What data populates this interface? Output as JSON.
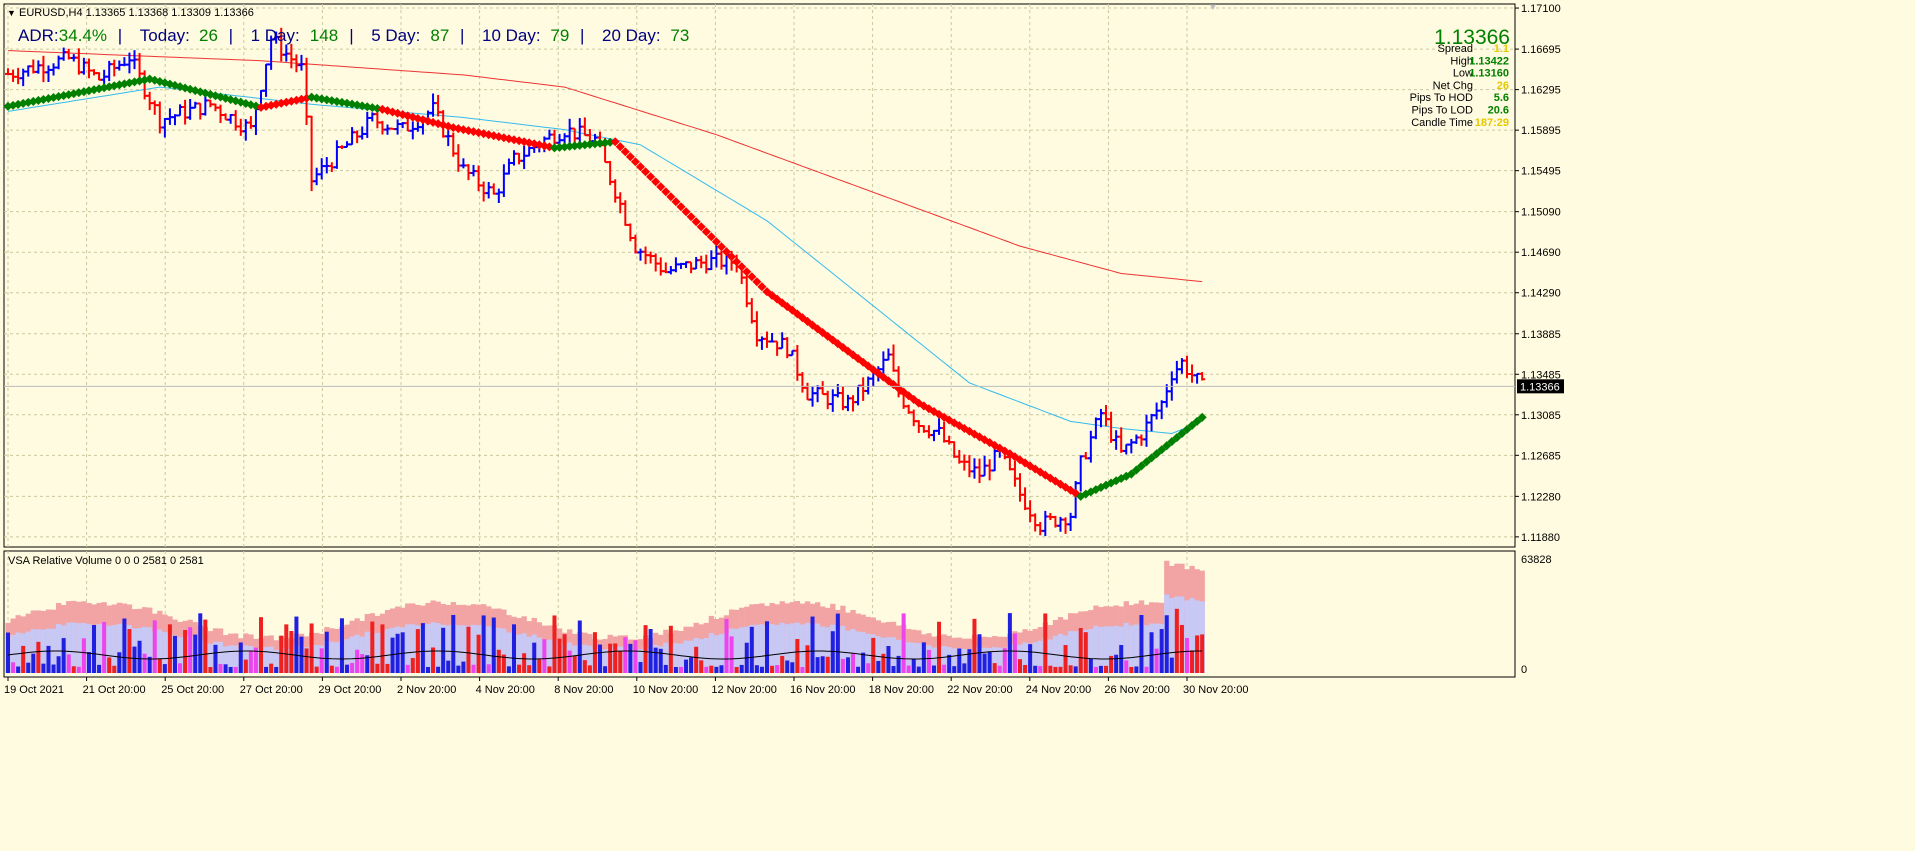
{
  "header": {
    "symbol_line": "EURUSD,H4  1.13365 1.13368 1.13309 1.13366"
  },
  "adr_bar": [
    {
      "label": "ADR:",
      "value": "34.4%",
      "sep": "|"
    },
    {
      "label": "Today:",
      "value": "26",
      "sep": "|"
    },
    {
      "label": "1 Day:",
      "value": "148",
      "sep": "|"
    },
    {
      "label": "5 Day:",
      "value": "87",
      "sep": "|"
    },
    {
      "label": "10 Day:",
      "value": "79",
      "sep": "|"
    },
    {
      "label": "20 Day:",
      "value": "73",
      "sep": ""
    }
  ],
  "info_panel": {
    "price": "1.13366",
    "rows": [
      {
        "label": "Spread",
        "value": "1.1",
        "color": "#e6c800"
      },
      {
        "label": "High",
        "value": "1.13422",
        "color": "#008000"
      },
      {
        "label": "Low",
        "value": "1.13160",
        "color": "#008000"
      },
      {
        "label": "Net Chg",
        "value": "26",
        "color": "#e6c800"
      },
      {
        "label": "Pips To HOD",
        "value": "5.6",
        "color": "#008000"
      },
      {
        "label": "Pips To LOD",
        "value": "20.6",
        "color": "#008000"
      },
      {
        "label": "Candle Time",
        "value": "187:29",
        "color": "#e6c800"
      }
    ]
  },
  "price_axis": {
    "ticks": [
      "1.17100",
      "1.16695",
      "1.16295",
      "1.15895",
      "1.15495",
      "1.15090",
      "1.14690",
      "1.14290",
      "1.13885",
      "1.13485",
      "1.13085",
      "1.12685",
      "1.12280",
      "1.11880"
    ],
    "current": "1.13366"
  },
  "volume_panel": {
    "title": "VSA Relative Volume 0 0 0 2581 0 2581",
    "axis_top": "63828",
    "axis_bottom": "0"
  },
  "time_axis": {
    "labels": [
      "19 Oct 2021",
      "21 Oct 20:00",
      "25 Oct 20:00",
      "27 Oct 20:00",
      "29 Oct 20:00",
      "2 Nov 20:00",
      "4 Nov 20:00",
      "8 Nov 20:00",
      "10 Nov 20:00",
      "12 Nov 20:00",
      "16 Nov 20:00",
      "18 Nov 20:00",
      "22 Nov 20:00",
      "24 Nov 20:00",
      "26 Nov 20:00",
      "30 Nov 20:00"
    ]
  },
  "colors": {
    "background": "#fffbe0",
    "grid": "#c8c8a0",
    "bull_bar": "#0000ff",
    "bear_bar": "#ff0000",
    "ma_fast": "#33bbee",
    "ma_slow": "#ee3333",
    "trail_up": "#008000",
    "trail_down": "#ff0000",
    "label_blue": "#000080",
    "label_green": "#008000"
  },
  "chart_data": {
    "type": "candlestick",
    "symbol": "EURUSD",
    "timeframe": "H4",
    "ylim": [
      1.1178,
      1.1714
    ],
    "anchors": [
      [
        0,
        1.1645
      ],
      [
        12,
        1.166
      ],
      [
        18,
        1.164
      ],
      [
        24,
        1.1662
      ],
      [
        30,
        1.16
      ],
      [
        40,
        1.1615
      ],
      [
        48,
        1.159
      ],
      [
        52,
        1.168
      ],
      [
        58,
        1.165
      ],
      [
        60,
        1.154
      ],
      [
        66,
        1.157
      ],
      [
        72,
        1.16
      ],
      [
        78,
        1.159
      ],
      [
        84,
        1.161
      ],
      [
        90,
        1.155
      ],
      [
        96,
        1.1525
      ],
      [
        100,
        1.156
      ],
      [
        106,
        1.158
      ],
      [
        110,
        1.159
      ],
      [
        116,
        1.158
      ],
      [
        120,
        1.153
      ],
      [
        124,
        1.1475
      ],
      [
        130,
        1.145
      ],
      [
        138,
        1.146
      ],
      [
        144,
        1.146
      ],
      [
        148,
        1.139
      ],
      [
        154,
        1.1375
      ],
      [
        158,
        1.133
      ],
      [
        166,
        1.132
      ],
      [
        170,
        1.134
      ],
      [
        174,
        1.1365
      ],
      [
        176,
        1.133
      ],
      [
        180,
        1.13
      ],
      [
        184,
        1.129
      ],
      [
        188,
        1.126
      ],
      [
        192,
        1.125
      ],
      [
        196,
        1.127
      ],
      [
        200,
        1.123
      ],
      [
        204,
        1.12
      ],
      [
        210,
        1.121
      ],
      [
        212,
        1.126
      ],
      [
        216,
        1.131
      ],
      [
        220,
        1.127
      ],
      [
        224,
        1.129
      ],
      [
        228,
        1.132
      ],
      [
        230,
        1.135
      ],
      [
        232,
        1.136
      ],
      [
        236,
        1.1336
      ]
    ],
    "ma_fast": [
      [
        0,
        1.1608
      ],
      [
        30,
        1.1632
      ],
      [
        60,
        1.1615
      ],
      [
        90,
        1.1602
      ],
      [
        110,
        1.159
      ],
      [
        125,
        1.1575
      ],
      [
        150,
        1.15
      ],
      [
        170,
        1.142
      ],
      [
        190,
        1.134
      ],
      [
        210,
        1.1302
      ],
      [
        220,
        1.1295
      ],
      [
        230,
        1.129
      ],
      [
        236,
        1.1302
      ]
    ],
    "ma_slow": [
      [
        0,
        1.1668
      ],
      [
        50,
        1.1658
      ],
      [
        90,
        1.1644
      ],
      [
        110,
        1.1632
      ],
      [
        140,
        1.1585
      ],
      [
        170,
        1.153
      ],
      [
        200,
        1.1475
      ],
      [
        220,
        1.1448
      ],
      [
        236,
        1.144
      ]
    ],
    "trail_stops": [
      [
        0,
        1.1613,
        "up"
      ],
      [
        28,
        1.164,
        "up"
      ],
      [
        50,
        1.1612,
        "down"
      ],
      [
        60,
        1.1622,
        "up"
      ],
      [
        74,
        1.161,
        "down"
      ],
      [
        88,
        1.1592,
        "down"
      ],
      [
        108,
        1.1572,
        "up"
      ],
      [
        120,
        1.1578,
        "down"
      ],
      [
        150,
        1.143,
        "down"
      ],
      [
        180,
        1.132,
        "down"
      ],
      [
        198,
        1.127,
        "down"
      ],
      [
        212,
        1.1228,
        "up"
      ],
      [
        222,
        1.125,
        "up"
      ],
      [
        236,
        1.1306,
        "up"
      ]
    ]
  }
}
